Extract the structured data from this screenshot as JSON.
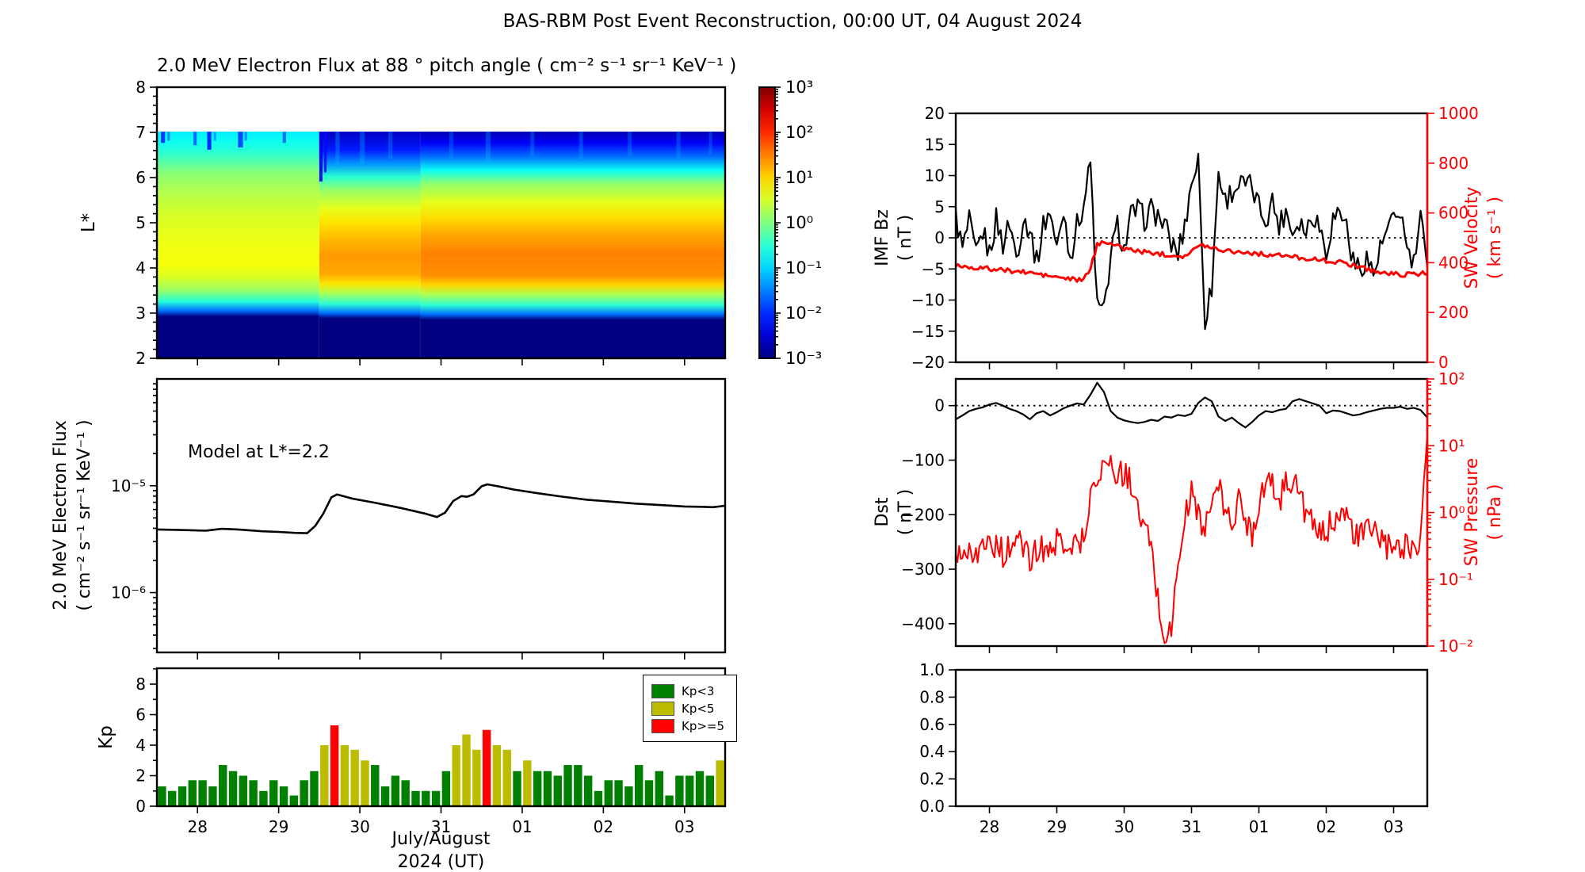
{
  "title": "BAS-RBM Post Event Reconstruction, 00:00 UT, 04 August 2024",
  "left": {
    "spectrogram": {
      "title": "2.0 MeV Electron Flux at 88 ° pitch angle ( cm⁻² s⁻¹ sr⁻¹ KeV⁻¹ )",
      "ylabel": "L*"
    },
    "flux": {
      "ylabel_line1": "2.0 MeV Electron Flux",
      "ylabel_line2": "( cm⁻² s⁻¹ sr⁻¹ KeV⁻¹ )",
      "annotation": "Model at L*=2.2"
    },
    "kp": {
      "ylabel": "Kp",
      "xlabel_line1": "July/August",
      "xlabel_line2": "2024 (UT)",
      "legend": [
        {
          "label": "Kp<3",
          "color": "#008000"
        },
        {
          "label": "Kp<5",
          "color": "#bcbd00"
        },
        {
          "label": "Kp>=5",
          "color": "#ff0000"
        }
      ]
    }
  },
  "right": {
    "imf": {
      "ylabel_line1": "IMF Bz",
      "ylabel_line2": "( nT )"
    },
    "velocity": {
      "ylabel_line1": "SW Velocity",
      "ylabel_line2": "( km s⁻¹ )"
    },
    "dst": {
      "ylabel_line1": "Dst",
      "ylabel_line2": "( nT )"
    },
    "pressure": {
      "ylabel_line1": "SW Pressure",
      "ylabel_line2": "( nPa )"
    }
  },
  "chart_data": {
    "x_axis": {
      "range": [
        27.5,
        34.5
      ],
      "tick_values": [
        28,
        29,
        30,
        31,
        32,
        33,
        34
      ],
      "tick_labels": [
        "28",
        "29",
        "30",
        "31",
        "01",
        "02",
        "03"
      ]
    },
    "spectrogram": {
      "type": "heatmap",
      "colormap": "jet",
      "log_color_range": [
        -3,
        3
      ],
      "y_axis": {
        "range": [
          2,
          8
        ],
        "data_top": 7,
        "tick_values": [
          8,
          7,
          6,
          5,
          4,
          3,
          2
        ],
        "tick_labels": [
          "8",
          "7",
          "6",
          "5",
          "4",
          "3",
          "2"
        ]
      },
      "colorbar_tick_labels": [
        "10³",
        "10²",
        "10¹",
        "10⁰",
        "10⁻¹",
        "10⁻²",
        "10⁻³"
      ],
      "columns": [
        {
          "t0": 27.5,
          "t1": 29.5,
          "stops": [
            [
              2,
              -3
            ],
            [
              2.92,
              -3
            ],
            [
              3.05,
              -1.6
            ],
            [
              3.25,
              -0.55
            ],
            [
              3.5,
              0.15
            ],
            [
              3.8,
              0.55
            ],
            [
              4.1,
              0.7
            ],
            [
              4.7,
              0.62
            ],
            [
              5.2,
              0.5
            ],
            [
              5.7,
              0.28
            ],
            [
              6.1,
              0.05
            ],
            [
              6.5,
              -0.45
            ],
            [
              6.75,
              -0.65
            ],
            [
              7,
              -0.85
            ]
          ]
        },
        {
          "t0": 29.5,
          "t1": 30.75,
          "stops": [
            [
              2,
              -3
            ],
            [
              2.88,
              -3
            ],
            [
              3,
              -1.6
            ],
            [
              3.2,
              -0.5
            ],
            [
              3.45,
              0.3
            ],
            [
              3.65,
              0.9
            ],
            [
              3.85,
              1.25
            ],
            [
              4.25,
              1.35
            ],
            [
              4.65,
              1.15
            ],
            [
              5,
              0.9
            ],
            [
              5.3,
              0.6
            ],
            [
              5.7,
              0.15
            ],
            [
              6,
              -0.5
            ],
            [
              6.3,
              -1.4
            ],
            [
              6.6,
              -2.1
            ],
            [
              7,
              -2.6
            ]
          ]
        },
        {
          "t0": 30.75,
          "t1": 34.5,
          "stops": [
            [
              2,
              -3
            ],
            [
              2.85,
              -3
            ],
            [
              2.97,
              -1.6
            ],
            [
              3.17,
              -0.5
            ],
            [
              3.42,
              0.3
            ],
            [
              3.62,
              1
            ],
            [
              3.82,
              1.4
            ],
            [
              4.3,
              1.5
            ],
            [
              4.75,
              1.25
            ],
            [
              5.1,
              0.95
            ],
            [
              5.45,
              0.6
            ],
            [
              5.85,
              0.1
            ],
            [
              6.15,
              -0.7
            ],
            [
              6.45,
              -1.6
            ],
            [
              6.75,
              -2.3
            ],
            [
              7,
              -2.7
            ]
          ]
        }
      ],
      "streaks": [
        {
          "t": 27.55,
          "w": 0.05,
          "l0": 6.75,
          "v": -2.0,
          "o": 0.9
        },
        {
          "t": 27.63,
          "w": 0.03,
          "l0": 6.8,
          "v": -1.6,
          "o": 0.8
        },
        {
          "t": 27.95,
          "w": 0.04,
          "l0": 6.7,
          "v": -1.8,
          "o": 0.8
        },
        {
          "t": 28.12,
          "w": 0.05,
          "l0": 6.6,
          "v": -2.2,
          "o": 0.85
        },
        {
          "t": 28.2,
          "w": 0.03,
          "l0": 6.8,
          "v": -1.5,
          "o": 0.7
        },
        {
          "t": 28.5,
          "w": 0.06,
          "l0": 6.65,
          "v": -2.0,
          "o": 0.85
        },
        {
          "t": 28.58,
          "w": 0.03,
          "l0": 6.8,
          "v": -1.6,
          "o": 0.7
        },
        {
          "t": 29.05,
          "w": 0.04,
          "l0": 6.75,
          "v": -1.8,
          "o": 0.8
        },
        {
          "t": 29.5,
          "w": 0.04,
          "l0": 5.9,
          "v": -2.4,
          "o": 0.9
        },
        {
          "t": 29.56,
          "w": 0.03,
          "l0": 6.1,
          "v": -2.2,
          "o": 0.85
        },
        {
          "t": 29.7,
          "w": 0.05,
          "l0": 6.2,
          "v": -1.2,
          "o": 0.35
        },
        {
          "t": 30.0,
          "w": 0.06,
          "l0": 6.3,
          "v": -1.1,
          "o": 0.3
        },
        {
          "t": 30.35,
          "w": 0.05,
          "l0": 6.4,
          "v": -1.2,
          "o": 0.3
        },
        {
          "t": 31.1,
          "w": 0.05,
          "l0": 6.4,
          "v": -1.3,
          "o": 0.3
        },
        {
          "t": 31.55,
          "w": 0.06,
          "l0": 6.35,
          "v": -1.1,
          "o": 0.3
        },
        {
          "t": 32.1,
          "w": 0.05,
          "l0": 6.45,
          "v": -1.2,
          "o": 0.3
        },
        {
          "t": 32.7,
          "w": 0.05,
          "l0": 6.4,
          "v": -1.2,
          "o": 0.3
        },
        {
          "t": 33.3,
          "w": 0.05,
          "l0": 6.45,
          "v": -1.2,
          "o": 0.28
        },
        {
          "t": 33.9,
          "w": 0.05,
          "l0": 6.4,
          "v": -1.2,
          "o": 0.3
        },
        {
          "t": 34.3,
          "w": 0.04,
          "l0": 6.5,
          "v": -1.3,
          "o": 0.3
        }
      ]
    },
    "flux_line": {
      "type": "line",
      "y_log_range": [
        -6.56,
        -4.0
      ],
      "y_tick_values": [
        -5,
        -6
      ],
      "y_tick_labels": [
        "10⁻⁵",
        "10⁻⁶"
      ],
      "x": [
        27.5,
        27.8,
        28.1,
        28.3,
        28.5,
        28.8,
        29.0,
        29.2,
        29.35,
        29.45,
        29.55,
        29.65,
        29.72,
        29.9,
        30.2,
        30.5,
        30.8,
        30.95,
        31.05,
        31.15,
        31.25,
        31.32,
        31.4,
        31.5,
        31.57,
        31.7,
        31.9,
        32.2,
        32.5,
        32.8,
        33.1,
        33.4,
        33.7,
        34.0,
        34.2,
        34.35,
        34.5
      ],
      "y": [
        3.9e-06,
        3.85e-06,
        3.8e-06,
        3.95e-06,
        3.9e-06,
        3.75e-06,
        3.7e-06,
        3.62e-06,
        3.6e-06,
        4.2e-06,
        5.5e-06,
        7.8e-06,
        8.3e-06,
        7.6e-06,
        6.9e-06,
        6.2e-06,
        5.5e-06,
        5.1e-06,
        5.6e-06,
        7.2e-06,
        8e-06,
        7.9e-06,
        8.3e-06,
        9.9e-06,
        1.03e-05,
        9.9e-06,
        9.2e-06,
        8.5e-06,
        7.9e-06,
        7.4e-06,
        7.1e-06,
        6.8e-06,
        6.6e-06,
        6.4e-06,
        6.35e-06,
        6.3e-06,
        6.5e-06
      ]
    },
    "kp_bars": {
      "type": "bar",
      "t0": 27.5,
      "dt": 0.125,
      "y_max": 9.04,
      "y_tick_values": [
        0,
        2,
        4,
        6,
        8
      ],
      "y_tick_labels": [
        "0",
        "2",
        "4",
        "6",
        "8"
      ],
      "thresholds": {
        "green_lt": 3,
        "yellow_lt": 5
      },
      "colors": {
        "green": "#008000",
        "yellow": "#bcbd00",
        "red": "#ff0000"
      },
      "values": [
        1.3,
        1,
        1.3,
        1.7,
        1.7,
        1.3,
        2.7,
        2.3,
        2,
        1.7,
        1,
        1.7,
        1.3,
        0.7,
        1.7,
        2.3,
        4,
        5.3,
        4,
        3.7,
        3,
        2.7,
        1.3,
        2,
        1.7,
        1,
        1,
        1,
        2.3,
        4,
        4.7,
        3.7,
        5,
        4,
        3.7,
        2.3,
        3,
        2.3,
        2.3,
        2,
        2.7,
        2.7,
        2,
        1,
        1.7,
        1.7,
        1.3,
        2.7,
        1.7,
        2.3,
        0.7,
        2,
        2,
        2.3,
        2,
        3
      ]
    },
    "imf_sw": {
      "type": "line",
      "zero_line": true,
      "bz": {
        "color": "#000000",
        "axis": {
          "range": [
            -20,
            20
          ],
          "tick_values": [
            20,
            15,
            10,
            5,
            0,
            -5,
            -10,
            -15,
            -20
          ],
          "tick_labels": [
            "20",
            "15",
            "10",
            "5",
            "0",
            "−5",
            "−10",
            "−15",
            "−20"
          ]
        },
        "x0": 27.5,
        "dx": 0.1,
        "noise": 2.0,
        "values": [
          3.5,
          -2,
          2.5,
          -3,
          1,
          -2.5,
          3,
          -1,
          2.5,
          -3,
          3,
          1.5,
          -4,
          2,
          4.5,
          -2,
          4.5,
          -3,
          2,
          5.5,
          12,
          -11,
          -12,
          -3,
          2,
          -2,
          3.5,
          4.5,
          3,
          4.5,
          3.5,
          2,
          -1,
          -2.5,
          2,
          9,
          12.5,
          -13,
          -8,
          10.5,
          6,
          7.5,
          8.5,
          8.5,
          8,
          5,
          3,
          6,
          2,
          4.5,
          1,
          3,
          1,
          4,
          2,
          -2,
          3,
          4.5,
          2,
          -4,
          -5,
          -3,
          -6,
          -2,
          1,
          2.5,
          4.5,
          -2,
          -4.5,
          3.5,
          -6
        ]
      },
      "velocity": {
        "color": "#ff0000",
        "axis": {
          "range": [
            0,
            1000
          ],
          "tick_values": [
            1000,
            800,
            600,
            400,
            200,
            0
          ],
          "tick_labels": [
            "1000",
            "800",
            "600",
            "400",
            "200",
            "0"
          ]
        },
        "x0": 27.5,
        "dx": 0.1,
        "noise": 9,
        "values": [
          390,
          386,
          383,
          380,
          378,
          375,
          372,
          370,
          368,
          365,
          362,
          360,
          356,
          350,
          346,
          342,
          338,
          334,
          331,
          330,
          380,
          470,
          490,
          478,
          465,
          458,
          452,
          447,
          443,
          440,
          437,
          434,
          431,
          429,
          427,
          445,
          465,
          470,
          462,
          455,
          450,
          447,
          444,
          441,
          439,
          436,
          433,
          431,
          429,
          427,
          424,
          421,
          418,
          414,
          411,
          408,
          405,
          401,
          396,
          391,
          384,
          376,
          368,
          361,
          357,
          355,
          353,
          352,
          354,
          356,
          360
        ]
      }
    },
    "dst_pressure": {
      "type": "line",
      "zero_line": true,
      "dst": {
        "color": "#000000",
        "axis": {
          "range": [
            -441,
            49
          ],
          "tick_values": [
            0,
            -100,
            -200,
            -300,
            -400
          ],
          "tick_labels": [
            "0",
            "−100",
            "−200",
            "−300",
            "−400"
          ]
        },
        "x0": 27.5,
        "dx": 0.1,
        "noise": 0,
        "values": [
          -25,
          -18,
          -10,
          -6,
          -3,
          2,
          5,
          0,
          -6,
          -10,
          -16,
          -25,
          -14,
          -10,
          -18,
          -12,
          -5,
          0,
          4,
          2,
          20,
          42,
          25,
          -10,
          -22,
          -27,
          -30,
          -32,
          -30,
          -26,
          -28,
          -20,
          -22,
          -17,
          -19,
          -15,
          5,
          15,
          8,
          -20,
          -28,
          -22,
          -32,
          -40,
          -30,
          -18,
          -10,
          -12,
          -8,
          -6,
          8,
          12,
          8,
          4,
          0,
          -14,
          -9,
          -10,
          -14,
          -18,
          -16,
          -12,
          -9,
          -6,
          -4,
          -4,
          -2,
          -6,
          -4,
          -8,
          -22
        ]
      },
      "pressure": {
        "color": "#ff0000",
        "axis": {
          "log_range": [
            -2,
            2
          ],
          "tick_values": [
            2,
            1,
            0,
            -1,
            -2
          ],
          "tick_labels": [
            "10²",
            "10¹",
            "10⁰",
            "10⁻¹",
            "10⁻²"
          ]
        },
        "x0": 27.5,
        "dx": 0.1,
        "log_noise": 0.22,
        "values": [
          0.3,
          0.25,
          0.35,
          0.22,
          0.3,
          0.4,
          0.3,
          0.25,
          0.3,
          0.35,
          0.3,
          0.2,
          0.25,
          0.3,
          0.25,
          0.35,
          0.4,
          0.35,
          0.3,
          0.5,
          1.5,
          4,
          5.5,
          4.5,
          4,
          3.5,
          3,
          1,
          0.6,
          0.3,
          0.05,
          0.012,
          0.02,
          0.15,
          0.8,
          2,
          1,
          0.5,
          1.5,
          2.5,
          1,
          0.7,
          1.5,
          0.8,
          0.5,
          1.5,
          3,
          2.5,
          1.5,
          2.8,
          3.2,
          2,
          1,
          0.6,
          0.45,
          0.5,
          0.8,
          1.2,
          0.8,
          0.5,
          0.4,
          0.55,
          0.6,
          0.4,
          0.3,
          0.25,
          0.3,
          0.35,
          0.3,
          0.4,
          20
        ]
      }
    },
    "empty_panel": {
      "type": "empty",
      "y_tick_values": [
        1.0,
        0.8,
        0.6,
        0.4,
        0.2,
        0.0
      ],
      "y_tick_labels": [
        "1.0",
        "0.8",
        "0.6",
        "0.4",
        "0.2",
        "0.0"
      ]
    }
  }
}
